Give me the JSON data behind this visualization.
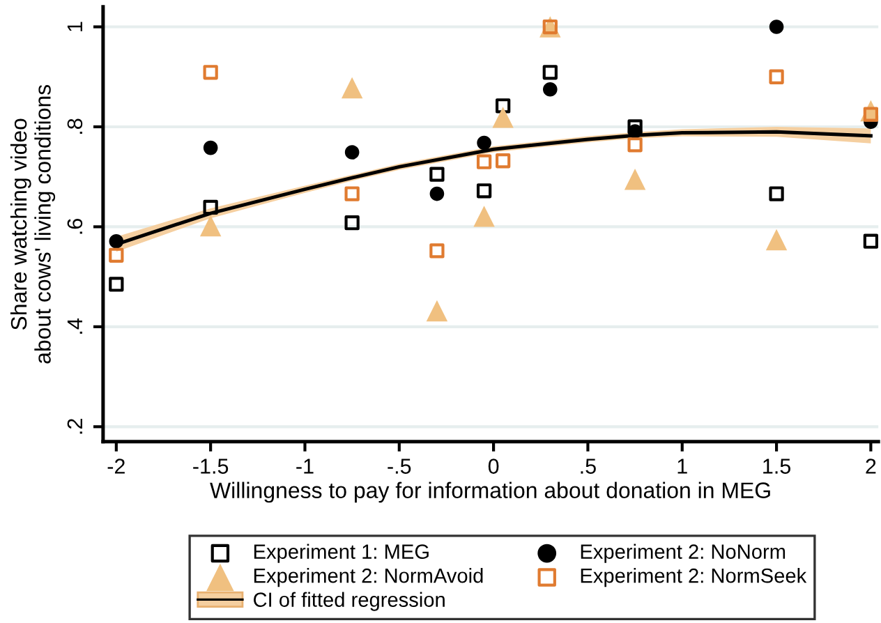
{
  "chart_data": {
    "type": "scatter",
    "xlabel": "Willingness to pay for information about donation in MEG",
    "ylabel": "Share watching video\nabout cows' living conditions",
    "xlim": [
      -2.07,
      2.04
    ],
    "ylim": [
      0.17,
      1.04
    ],
    "xticks": [
      -2,
      {
        "value": -1.5,
        "label": "-1.5"
      },
      -1,
      {
        "value": -0.5,
        "label": "-.5"
      },
      0,
      {
        "value": 0.5,
        "label": ".5"
      },
      1,
      {
        "value": 1.5,
        "label": "1.5"
      },
      2
    ],
    "yticks": [
      {
        "value": 0.2,
        "label": ".2"
      },
      {
        "value": 0.4,
        "label": ".4"
      },
      {
        "value": 0.6,
        "label": ".6"
      },
      {
        "value": 0.8,
        "label": ".8"
      },
      1
    ],
    "grid": "y",
    "legend": "bottom",
    "x": [
      -2,
      -1.5,
      -0.75,
      -0.3,
      -0.05,
      0.05,
      0.3,
      0.75,
      1.5,
      2
    ],
    "series": [
      {
        "name": "Experiment 1: MEG",
        "color": "#000000",
        "marker": "square",
        "values": [
          0.485,
          0.639,
          0.608,
          0.705,
          0.672,
          0.842,
          0.909,
          0.8,
          0.666,
          0.571
        ]
      },
      {
        "name": "Experiment 2: NoNorm",
        "color": "#000000",
        "marker": "circle",
        "values": [
          0.571,
          0.758,
          0.749,
          0.666,
          0.768,
          null,
          0.875,
          0.791,
          1.0,
          0.81
        ]
      },
      {
        "name": "Experiment 2: NormAvoid",
        "color": "#f0c080",
        "marker": "triangle",
        "values": [
          null,
          0.602,
          0.878,
          0.432,
          0.621,
          0.819,
          1.0,
          0.695,
          0.574,
          0.832
        ]
      },
      {
        "name": "Experiment 2: NormSeek",
        "color": "#e07b30",
        "marker": "square",
        "values": [
          0.543,
          0.909,
          0.666,
          0.552,
          0.73,
          0.732,
          1.0,
          0.764,
          0.9,
          0.825
        ]
      },
      {
        "name": "CI of fitted regression",
        "type": "line",
        "color": "#000000",
        "x": [
          -2,
          -1.5,
          -1,
          -0.75,
          -0.5,
          0,
          0.5,
          0.75,
          1,
          1.5,
          2
        ],
        "values": [
          0.565,
          0.627,
          0.675,
          0.698,
          0.72,
          0.755,
          0.775,
          0.783,
          0.788,
          0.79,
          0.782
        ],
        "lower": [
          0.55,
          0.617,
          0.668,
          0.692,
          0.714,
          0.749,
          0.769,
          0.777,
          0.781,
          0.78,
          0.767
        ],
        "upper": [
          0.58,
          0.637,
          0.682,
          0.704,
          0.726,
          0.761,
          0.781,
          0.789,
          0.795,
          0.8,
          0.797
        ]
      }
    ]
  }
}
